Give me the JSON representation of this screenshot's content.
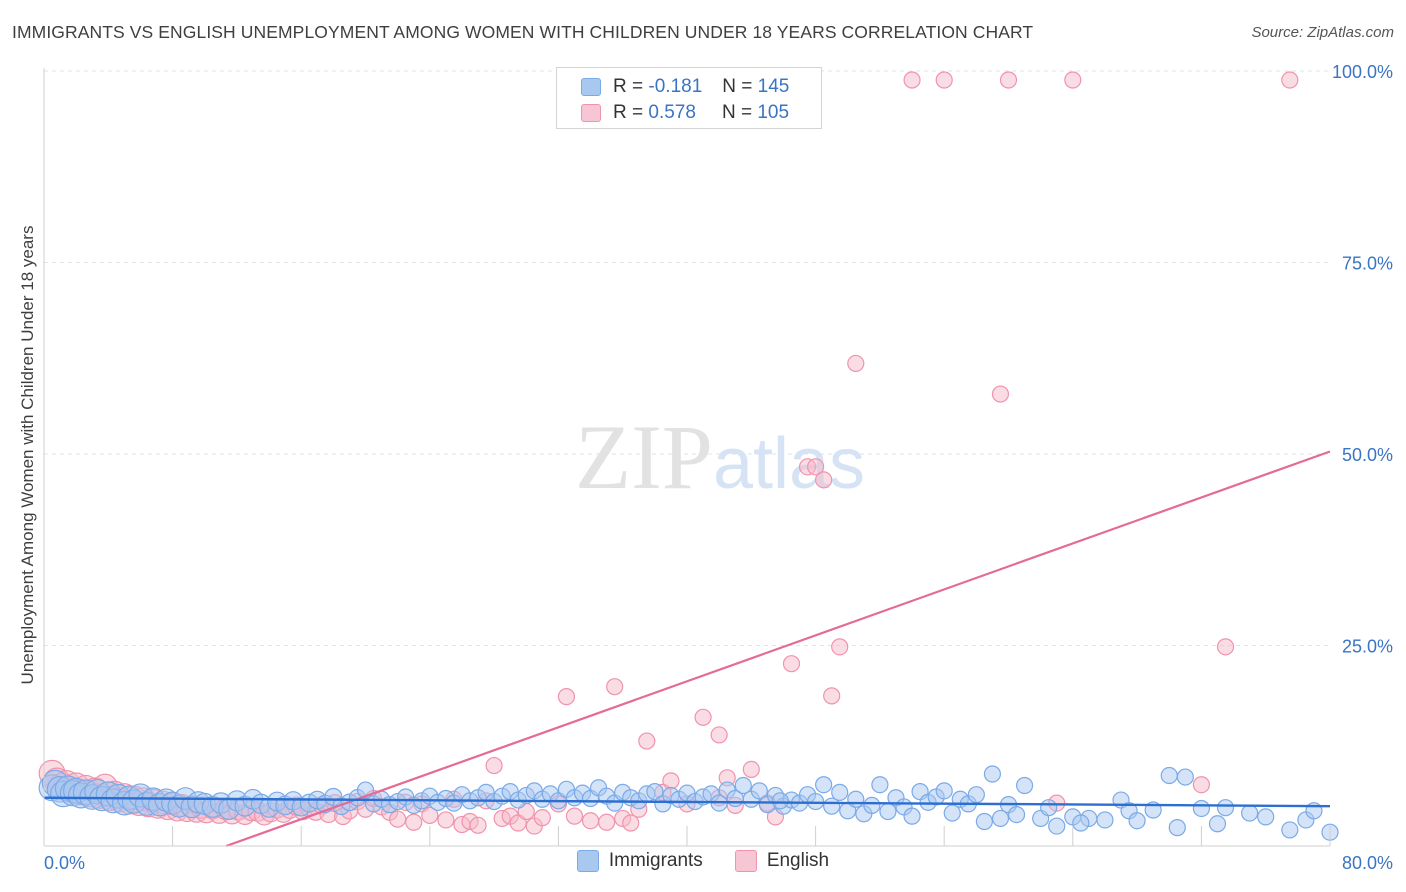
{
  "chart_data": {
    "type": "scatter",
    "title": "IMMIGRANTS VS ENGLISH UNEMPLOYMENT AMONG WOMEN WITH CHILDREN UNDER 18 YEARS CORRELATION CHART",
    "source": "Source: ZipAtlas.com",
    "ylabel": "Unemployment Among Women with Children Under 18 years",
    "xlabel": "",
    "xlim": [
      0,
      80
    ],
    "ylim": [
      0,
      100
    ],
    "x_tick_labels": [
      "0.0%",
      "80.0%"
    ],
    "y_tick_labels": [
      "25.0%",
      "50.0%",
      "75.0%",
      "100.0%"
    ],
    "y_ticks": [
      25,
      50,
      75,
      100
    ],
    "watermark": "ZIPatlas",
    "legend": [
      {
        "label": "R =",
        "r": "-0.181",
        "n_label": "N =",
        "n": "145"
      },
      {
        "label": "R =",
        "r": "0.578",
        "n_label": "N =",
        "n": "105"
      }
    ],
    "series": [
      {
        "name": "Immigrants",
        "color": "#7aaae8",
        "fill": "#a9c8f0",
        "trend": {
          "x0": 0,
          "y0": 6.3,
          "x1": 80,
          "y1": 5.2
        },
        "points": [
          [
            0.5,
            7.6
          ],
          [
            0.7,
            8.2
          ],
          [
            1.0,
            7.4
          ],
          [
            1.2,
            6.8
          ],
          [
            1.5,
            7.5
          ],
          [
            1.8,
            6.9
          ],
          [
            2.0,
            7.2
          ],
          [
            2.3,
            6.6
          ],
          [
            2.6,
            7.0
          ],
          [
            3.0,
            6.4
          ],
          [
            3.3,
            7.1
          ],
          [
            3.6,
            6.2
          ],
          [
            4.0,
            6.8
          ],
          [
            4.3,
            5.9
          ],
          [
            4.6,
            6.5
          ],
          [
            5.0,
            5.6
          ],
          [
            5.3,
            6.3
          ],
          [
            5.6,
            5.8
          ],
          [
            6.0,
            6.6
          ],
          [
            6.4,
            5.5
          ],
          [
            6.8,
            6.1
          ],
          [
            7.2,
            5.4
          ],
          [
            7.6,
            6.0
          ],
          [
            8.0,
            5.6
          ],
          [
            8.4,
            5.2
          ],
          [
            8.8,
            6.2
          ],
          [
            9.2,
            5.1
          ],
          [
            9.6,
            5.7
          ],
          [
            10.0,
            5.5
          ],
          [
            10.5,
            5.1
          ],
          [
            11.0,
            5.6
          ],
          [
            11.5,
            4.8
          ],
          [
            12.0,
            5.9
          ],
          [
            12.5,
            5.2
          ],
          [
            13.0,
            6.1
          ],
          [
            13.5,
            5.5
          ],
          [
            14.0,
            5.0
          ],
          [
            14.5,
            5.8
          ],
          [
            15.0,
            5.3
          ],
          [
            15.5,
            5.9
          ],
          [
            16.0,
            5.1
          ],
          [
            16.5,
            5.6
          ],
          [
            17.0,
            6.0
          ],
          [
            17.5,
            5.5
          ],
          [
            18.0,
            6.4
          ],
          [
            18.5,
            5.2
          ],
          [
            19.0,
            5.7
          ],
          [
            19.5,
            6.3
          ],
          [
            20.0,
            7.3
          ],
          [
            20.5,
            5.5
          ],
          [
            21.0,
            6.1
          ],
          [
            21.5,
            5.4
          ],
          [
            22.0,
            5.8
          ],
          [
            22.5,
            6.4
          ],
          [
            23.0,
            5.3
          ],
          [
            23.5,
            5.9
          ],
          [
            24.0,
            6.5
          ],
          [
            24.5,
            5.7
          ],
          [
            25.0,
            6.2
          ],
          [
            25.5,
            5.6
          ],
          [
            26.0,
            6.7
          ],
          [
            26.5,
            5.9
          ],
          [
            27.0,
            6.3
          ],
          [
            27.5,
            7.0
          ],
          [
            28.0,
            5.8
          ],
          [
            28.5,
            6.5
          ],
          [
            29.0,
            7.1
          ],
          [
            29.5,
            6.0
          ],
          [
            30.0,
            6.6
          ],
          [
            30.5,
            7.2
          ],
          [
            31.0,
            6.1
          ],
          [
            31.5,
            6.8
          ],
          [
            32.0,
            5.9
          ],
          [
            32.5,
            7.4
          ],
          [
            33.0,
            6.3
          ],
          [
            33.5,
            6.9
          ],
          [
            34.0,
            6.2
          ],
          [
            34.5,
            7.6
          ],
          [
            35.0,
            6.5
          ],
          [
            35.5,
            5.6
          ],
          [
            36.0,
            7.0
          ],
          [
            36.5,
            6.3
          ],
          [
            37.0,
            5.9
          ],
          [
            37.5,
            6.8
          ],
          [
            38.0,
            7.1
          ],
          [
            38.5,
            5.5
          ],
          [
            39.0,
            6.6
          ],
          [
            39.5,
            6.1
          ],
          [
            40.0,
            6.9
          ],
          [
            40.5,
            5.8
          ],
          [
            41.0,
            6.4
          ],
          [
            41.5,
            6.8
          ],
          [
            42.0,
            5.6
          ],
          [
            42.5,
            7.3
          ],
          [
            43.0,
            6.2
          ],
          [
            43.5,
            7.9
          ],
          [
            44.0,
            6.1
          ],
          [
            44.5,
            7.2
          ],
          [
            45.0,
            5.4
          ],
          [
            45.5,
            6.6
          ],
          [
            46.0,
            5.2
          ],
          [
            46.5,
            6.0
          ],
          [
            47.0,
            5.6
          ],
          [
            47.5,
            6.7
          ],
          [
            48.0,
            5.8
          ],
          [
            48.5,
            8.0
          ],
          [
            49.0,
            5.2
          ],
          [
            49.5,
            7.0
          ],
          [
            50.0,
            4.6
          ],
          [
            50.5,
            6.1
          ],
          [
            51.0,
            4.2
          ],
          [
            51.5,
            5.3
          ],
          [
            52.0,
            8.0
          ],
          [
            52.5,
            4.5
          ],
          [
            53.0,
            6.3
          ],
          [
            53.5,
            5.1
          ],
          [
            54.0,
            3.9
          ],
          [
            54.5,
            7.1
          ],
          [
            55.0,
            5.7
          ],
          [
            55.5,
            6.4
          ],
          [
            56.0,
            7.2
          ],
          [
            56.5,
            4.3
          ],
          [
            57.0,
            6.1
          ],
          [
            57.5,
            5.5
          ],
          [
            58.0,
            6.7
          ],
          [
            58.5,
            3.2
          ],
          [
            59.0,
            9.4
          ],
          [
            59.5,
            3.6
          ],
          [
            60.0,
            5.4
          ],
          [
            60.5,
            4.1
          ],
          [
            61.0,
            7.9
          ],
          [
            62.0,
            3.6
          ],
          [
            62.5,
            5.0
          ],
          [
            63.0,
            2.6
          ],
          [
            64.0,
            3.8
          ],
          [
            65.0,
            3.6
          ],
          [
            66.0,
            3.4
          ],
          [
            67.0,
            6.0
          ],
          [
            67.5,
            4.6
          ],
          [
            68.0,
            3.3
          ],
          [
            69.0,
            4.7
          ],
          [
            70.0,
            9.2
          ],
          [
            70.5,
            2.4
          ],
          [
            71.0,
            9.0
          ],
          [
            72.0,
            4.9
          ],
          [
            73.0,
            2.9
          ],
          [
            73.5,
            5.0
          ],
          [
            75.0,
            4.3
          ],
          [
            76.0,
            3.8
          ],
          [
            77.5,
            2.1
          ],
          [
            78.5,
            3.4
          ],
          [
            79.0,
            4.6
          ],
          [
            80.0,
            1.8
          ],
          [
            64.5,
            3.0
          ],
          [
            45.8,
            5.9
          ]
        ]
      },
      {
        "name": "English",
        "color": "#f093ad",
        "fill": "#f6b9ca",
        "trend": {
          "x0": 0,
          "y0": -8.5,
          "x1": 80,
          "y1": 51.5
        },
        "points": [
          [
            0.5,
            9.5
          ],
          [
            0.8,
            8.5
          ],
          [
            1.1,
            7.8
          ],
          [
            1.4,
            8.2
          ],
          [
            1.7,
            7.3
          ],
          [
            2.0,
            7.9
          ],
          [
            2.3,
            7.0
          ],
          [
            2.6,
            7.6
          ],
          [
            2.9,
            6.7
          ],
          [
            3.2,
            7.3
          ],
          [
            3.5,
            6.5
          ],
          [
            3.8,
            7.8
          ],
          [
            4.1,
            6.2
          ],
          [
            4.4,
            6.9
          ],
          [
            4.7,
            6.0
          ],
          [
            5.0,
            6.6
          ],
          [
            5.3,
            5.7
          ],
          [
            5.6,
            6.3
          ],
          [
            5.9,
            5.5
          ],
          [
            6.2,
            6.1
          ],
          [
            6.5,
            5.3
          ],
          [
            6.8,
            5.9
          ],
          [
            7.1,
            5.1
          ],
          [
            7.4,
            5.7
          ],
          [
            7.7,
            4.9
          ],
          [
            8.0,
            5.5
          ],
          [
            8.3,
            4.7
          ],
          [
            8.6,
            5.3
          ],
          [
            8.9,
            4.6
          ],
          [
            9.2,
            5.1
          ],
          [
            9.5,
            4.5
          ],
          [
            9.8,
            5.0
          ],
          [
            10.1,
            4.4
          ],
          [
            10.5,
            4.9
          ],
          [
            10.9,
            4.3
          ],
          [
            11.3,
            4.8
          ],
          [
            11.7,
            4.2
          ],
          [
            12.1,
            4.7
          ],
          [
            12.5,
            4.1
          ],
          [
            12.9,
            4.6
          ],
          [
            13.3,
            4.5
          ],
          [
            13.7,
            4.0
          ],
          [
            14.1,
            4.4
          ],
          [
            14.5,
            4.9
          ],
          [
            14.9,
            4.3
          ],
          [
            15.3,
            4.8
          ],
          [
            15.7,
            5.2
          ],
          [
            16.1,
            4.6
          ],
          [
            16.5,
            5.0
          ],
          [
            16.9,
            4.5
          ],
          [
            17.3,
            5.3
          ],
          [
            17.7,
            4.2
          ],
          [
            18.1,
            5.6
          ],
          [
            18.6,
            3.9
          ],
          [
            19.0,
            4.6
          ],
          [
            19.5,
            5.8
          ],
          [
            20.0,
            4.8
          ],
          [
            20.5,
            6.2
          ],
          [
            21.0,
            5.1
          ],
          [
            21.5,
            4.4
          ],
          [
            22.0,
            3.5
          ],
          [
            22.5,
            5.7
          ],
          [
            23.0,
            3.1
          ],
          [
            23.5,
            5.5
          ],
          [
            24.0,
            4.0
          ],
          [
            25.0,
            3.4
          ],
          [
            25.5,
            6.1
          ],
          [
            26.0,
            2.8
          ],
          [
            26.5,
            3.2
          ],
          [
            27.0,
            2.7
          ],
          [
            27.5,
            5.9
          ],
          [
            28.0,
            10.5
          ],
          [
            28.5,
            3.6
          ],
          [
            29.0,
            3.9
          ],
          [
            29.5,
            3.0
          ],
          [
            30.0,
            4.5
          ],
          [
            30.5,
            2.6
          ],
          [
            31.0,
            3.7
          ],
          [
            32.0,
            5.5
          ],
          [
            32.5,
            19.5
          ],
          [
            33.0,
            3.9
          ],
          [
            34.0,
            3.3
          ],
          [
            35.0,
            3.1
          ],
          [
            35.5,
            20.8
          ],
          [
            36.0,
            3.6
          ],
          [
            36.5,
            3.0
          ],
          [
            37.0,
            4.8
          ],
          [
            37.5,
            13.7
          ],
          [
            38.5,
            7.0
          ],
          [
            39.0,
            8.5
          ],
          [
            40.0,
            5.5
          ],
          [
            41.0,
            16.8
          ],
          [
            42.0,
            14.5
          ],
          [
            42.5,
            8.9
          ],
          [
            43.0,
            5.3
          ],
          [
            44.0,
            10.0
          ],
          [
            45.0,
            5.6
          ],
          [
            45.5,
            3.8
          ],
          [
            46.5,
            23.8
          ],
          [
            47.5,
            49.5
          ],
          [
            48.0,
            49.5
          ],
          [
            48.5,
            47.8
          ],
          [
            49.0,
            19.6
          ],
          [
            49.5,
            26.0
          ],
          [
            50.5,
            63.0
          ]
        ],
        "top_points": [
          [
            54.0,
            100
          ],
          [
            56.0,
            100
          ],
          [
            60.0,
            100
          ],
          [
            64.0,
            100
          ],
          [
            77.5,
            100
          ]
        ],
        "extra_points": [
          [
            59.5,
            59.0
          ],
          [
            73.5,
            26.0
          ],
          [
            72.0,
            8.0
          ],
          [
            63.0,
            5.6
          ],
          [
            42.0,
            6.3
          ]
        ]
      }
    ]
  }
}
